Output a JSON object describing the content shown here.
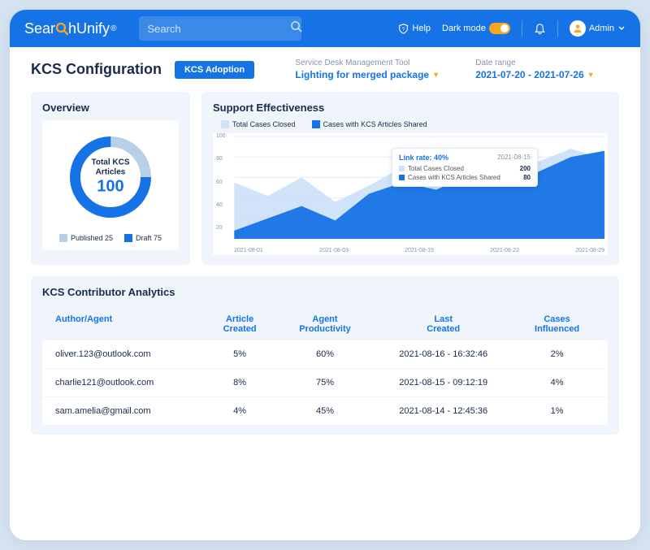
{
  "brand": {
    "pre": "Sear",
    "post": "hUnify"
  },
  "search": {
    "placeholder": "Search"
  },
  "topnav": {
    "help": "Help",
    "darkmode": "Dark mode",
    "admin": "Admin"
  },
  "page": {
    "title": "KCS Configuration",
    "badge": "KCS Adoption"
  },
  "filters": {
    "tool": {
      "label": "Service Desk Management Tool",
      "value": "Lighting for merged package"
    },
    "range": {
      "label": "Date range",
      "value": "2021-07-20  -  2021-07-26"
    }
  },
  "overview": {
    "title": "Overview",
    "center_label": "Total KCS\nArticles",
    "center_value": "100",
    "donut": {
      "segments": [
        {
          "label": "Published",
          "value": 25,
          "color": "#b8cfe8"
        },
        {
          "label": "Draft",
          "value": 75,
          "color": "#1673e6"
        }
      ],
      "radius": 50,
      "thickness": 13
    },
    "legend": [
      {
        "color": "#b8cfe8",
        "text": "Published 25"
      },
      {
        "color": "#1673e6",
        "text": "Draft 75"
      }
    ]
  },
  "effectiveness": {
    "title": "Support Effectiveness",
    "legend": [
      {
        "color": "#cfe2f9",
        "text": "Total Cases Closed"
      },
      {
        "color": "#1673e6",
        "text": "Cases with KCS Articles Shared"
      }
    ],
    "chart": {
      "type": "area",
      "ylim": [
        0,
        100
      ],
      "yticks": [
        100,
        80,
        60,
        40,
        20
      ],
      "xlabels": [
        "2021-08-01",
        "2021-08-03",
        "2021-08-15",
        "2021-08-22",
        "2021-08-29"
      ],
      "grid_color": "#e5ecf5",
      "series": [
        {
          "color": "#cfe2f9",
          "points": [
            55,
            42,
            60,
            36,
            52,
            70,
            58,
            66,
            82,
            75,
            88,
            78
          ]
        },
        {
          "color": "#1673e6",
          "points": [
            8,
            20,
            32,
            18,
            44,
            55,
            48,
            62,
            72,
            65,
            80,
            86
          ]
        }
      ]
    },
    "tooltip": {
      "rate_label": "Link rate: 40%",
      "date": "2021-08-15",
      "rows": [
        {
          "color": "#cfe2f9",
          "name": "Total Cases Closed",
          "value": "200"
        },
        {
          "color": "#1673e6",
          "name": "Cases with KCS Articles Shared",
          "value": "80"
        }
      ]
    }
  },
  "analytics": {
    "title": "KCS Contributor Analytics",
    "columns": [
      "Author/Agent",
      "Article Created",
      "Agent Productivity",
      "Last Created",
      "Cases Influenced"
    ],
    "rows": [
      [
        "oliver.123@outlook.com",
        "5%",
        "60%",
        "2021-08-16 - 16:32:46",
        "2%"
      ],
      [
        "charlie121@outlook.com",
        "8%",
        "75%",
        "2021-08-15 - 09:12:19",
        "4%"
      ],
      [
        "sam.amelia@gmail.com",
        "4%",
        "45%",
        "2021-08-14 - 12:45:36",
        "1%"
      ]
    ]
  }
}
